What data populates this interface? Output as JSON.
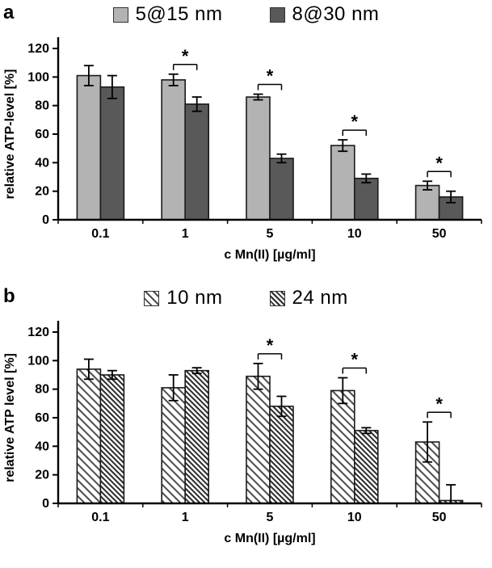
{
  "panel_labels": [
    "a",
    "b"
  ],
  "sig_label": "*",
  "colors": {
    "light_gray_bar": "#b3b3b3",
    "dark_gray_bar": "#595959",
    "bar_outline": "#1a1a1a",
    "axis": "#000000",
    "hatch_light_stripe": "#4d4d4d",
    "hatch_dense_stripe": "#2b2b2b"
  },
  "chart_data": [
    {
      "type": "bar",
      "title": "",
      "categories": [
        "0.1",
        "1",
        "5",
        "10",
        "50"
      ],
      "xlabel": "c Mn(II) [µg/ml]",
      "ylabel": "relative ATP-level [%]",
      "ylim": [
        0,
        120
      ],
      "ytick_step": 20,
      "grid": false,
      "legend_position": "top",
      "series": [
        {
          "name": "5@15 nm",
          "values": [
            101,
            98,
            86,
            52,
            24
          ],
          "errors": [
            7,
            4,
            2,
            4,
            3
          ],
          "fill_type": "solid",
          "color": "#b3b3b3"
        },
        {
          "name": "8@30 nm",
          "values": [
            93,
            81,
            43,
            29,
            16
          ],
          "errors": [
            8,
            5,
            3,
            3,
            4
          ],
          "fill_type": "solid",
          "color": "#595959"
        }
      ],
      "significant_category_indices": [
        1,
        2,
        3,
        4
      ]
    },
    {
      "type": "bar",
      "title": "",
      "categories": [
        "0.1",
        "1",
        "5",
        "10",
        "50"
      ],
      "xlabel": "c Mn(II) [µg/ml]",
      "ylabel": "relative ATP level [%]",
      "ylim": [
        0,
        120
      ],
      "ytick_step": 20,
      "grid": false,
      "legend_position": "top",
      "series": [
        {
          "name": "10 nm",
          "values": [
            94,
            81,
            89,
            79,
            43
          ],
          "errors": [
            7,
            9,
            9,
            9,
            14
          ],
          "fill_type": "hatch",
          "stripe_color": "#4d4d4d",
          "stripe_spacing": 7,
          "stripe_width": 2
        },
        {
          "name": "24 nm",
          "values": [
            90,
            93,
            68,
            51,
            2
          ],
          "errors": [
            3,
            2,
            7,
            2,
            11
          ],
          "fill_type": "hatch",
          "stripe_color": "#2b2b2b",
          "stripe_spacing": 4.5,
          "stripe_width": 2
        }
      ],
      "significant_category_indices": [
        2,
        3,
        4
      ]
    }
  ]
}
